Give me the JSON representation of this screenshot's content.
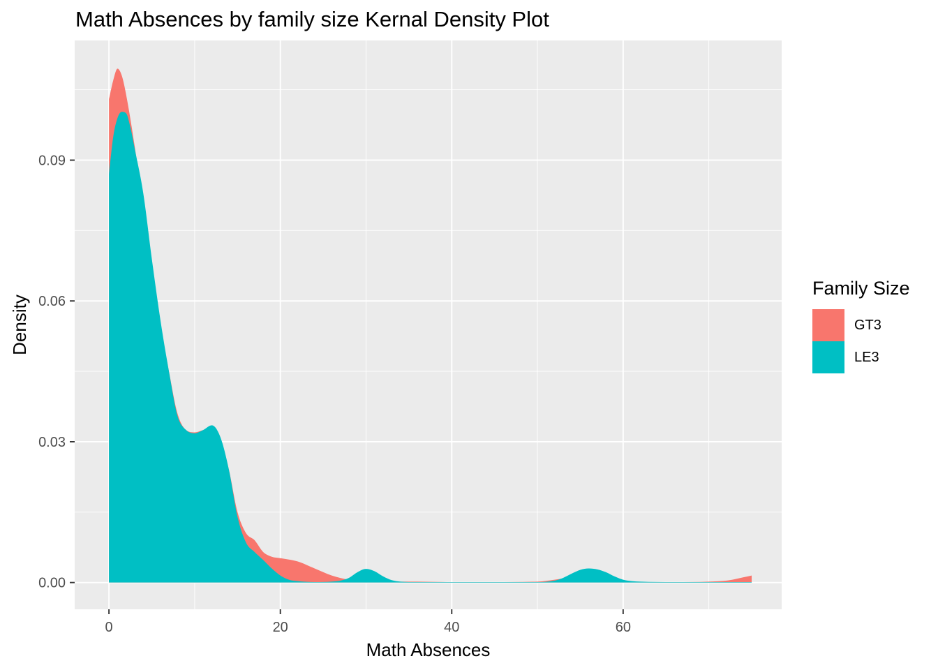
{
  "chart_data": {
    "type": "area",
    "title": "Math Absences by family size Kernal Density Plot",
    "xlabel": "Math Absences",
    "ylabel": "Density",
    "xlim": [
      -4,
      78.5
    ],
    "ylim": [
      -0.0057,
      0.1155
    ],
    "x_ticks": [
      0,
      20,
      40,
      60
    ],
    "x_tick_labels": [
      "0",
      "20",
      "40",
      "60"
    ],
    "y_ticks": [
      0.0,
      0.03,
      0.06,
      0.09
    ],
    "y_tick_labels": [
      "0.00",
      "0.03",
      "0.06",
      "0.09"
    ],
    "grid": true,
    "legend": {
      "title": "Family Size",
      "position": "right"
    },
    "series": [
      {
        "name": "GT3",
        "color": "#F8766D",
        "x": [
          0,
          0.5,
          1,
          1.5,
          2,
          3,
          4,
          5,
          6,
          7,
          8,
          9,
          10,
          11,
          12,
          13,
          14,
          15,
          16,
          17,
          18,
          19,
          20,
          22,
          24,
          26,
          28,
          30,
          32,
          34,
          36,
          40,
          45,
          50,
          52,
          54,
          56,
          57,
          58,
          60,
          62,
          66,
          70,
          72,
          73,
          74,
          75
        ],
        "y": [
          0.103,
          0.107,
          0.1095,
          0.108,
          0.104,
          0.093,
          0.08,
          0.067,
          0.055,
          0.045,
          0.036,
          0.0325,
          0.032,
          0.0325,
          0.033,
          0.0305,
          0.024,
          0.015,
          0.0105,
          0.009,
          0.0065,
          0.0055,
          0.0052,
          0.0045,
          0.003,
          0.0015,
          0.0006,
          0.0003,
          0.0002,
          0.0002,
          0.0002,
          0.0001,
          0.0001,
          0.0002,
          0.0006,
          0.0012,
          0.0016,
          0.0015,
          0.0011,
          0.0004,
          0.0001,
          0.0001,
          0.0002,
          0.0004,
          0.0007,
          0.0011,
          0.0015
        ]
      },
      {
        "name": "LE3",
        "color": "#00BFC4",
        "x": [
          0,
          0.5,
          1,
          1.5,
          2,
          2.5,
          3,
          4,
          5,
          6,
          7,
          8,
          9,
          10,
          11,
          12,
          13,
          14,
          15,
          16,
          17,
          18,
          19,
          20,
          21,
          22,
          24,
          26,
          27,
          28,
          29,
          30,
          31,
          32,
          33,
          34,
          36,
          40,
          45,
          50,
          52,
          53,
          54,
          55,
          56,
          57,
          58,
          59,
          60,
          61,
          62,
          66,
          70,
          75
        ],
        "y": [
          0.087,
          0.095,
          0.099,
          0.1003,
          0.1,
          0.097,
          0.0925,
          0.083,
          0.069,
          0.056,
          0.045,
          0.0355,
          0.0325,
          0.0318,
          0.0325,
          0.0335,
          0.031,
          0.024,
          0.014,
          0.0085,
          0.0065,
          0.0048,
          0.003,
          0.0015,
          0.0006,
          0.0003,
          0.0001,
          0.0002,
          0.0004,
          0.001,
          0.0022,
          0.0029,
          0.0024,
          0.0013,
          0.0005,
          0.0002,
          0.0001,
          0.0001,
          0.0001,
          0.0001,
          0.0004,
          0.001,
          0.0019,
          0.0027,
          0.003,
          0.0028,
          0.0022,
          0.0013,
          0.0006,
          0.0003,
          0.0002,
          0.0001,
          0.0001,
          0.0001
        ]
      }
    ]
  }
}
